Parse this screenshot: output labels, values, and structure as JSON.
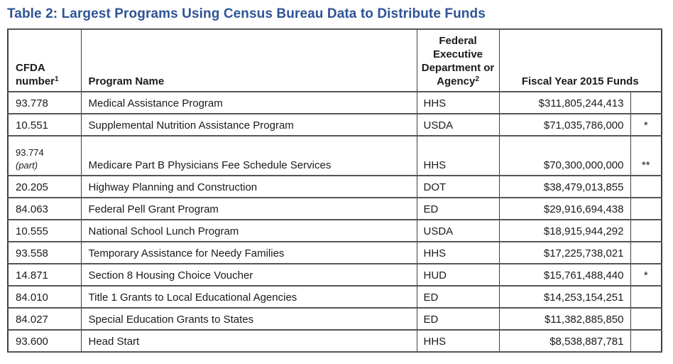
{
  "title": "Table 2: Largest Programs Using Census Bureau Data to Distribute Funds",
  "colors": {
    "title_text": "#2f5496",
    "table_border": "#3f3f3f",
    "body_text": "#1a1a1a",
    "background": "#ffffff"
  },
  "table": {
    "headers": {
      "cfda": {
        "line1": "CFDA",
        "line2": "number",
        "sup": "1"
      },
      "program": "Program Name",
      "agency": {
        "text": "Federal Executive Department or Agency",
        "sup": "2"
      },
      "funds": "Fiscal Year 2015 Funds"
    },
    "rows": [
      {
        "cfda": "93.778",
        "program": "Medical Assistance Program",
        "agency": "HHS",
        "funds": "$311,805,244,413",
        "note": ""
      },
      {
        "cfda": "10.551",
        "program": "Supplemental Nutrition Assistance Program",
        "agency": "USDA",
        "funds": "$71,035,786,000",
        "note": "*"
      },
      {
        "cfda": "93.774",
        "cfda_line2": "(part)",
        "program": "Medicare Part B Physicians Fee Schedule Services",
        "agency": "HHS",
        "funds": "$70,300,000,000",
        "note": "**"
      },
      {
        "cfda": "20.205",
        "program": "Highway Planning and Construction",
        "agency": "DOT",
        "funds": "$38,479,013,855",
        "note": ""
      },
      {
        "cfda": "84.063",
        "program": "Federal Pell Grant Program",
        "agency": "ED",
        "funds": "$29,916,694,438",
        "note": ""
      },
      {
        "cfda": "10.555",
        "program": "National School Lunch Program",
        "agency": "USDA",
        "funds": "$18,915,944,292",
        "note": ""
      },
      {
        "cfda": "93.558",
        "program": "Temporary Assistance for Needy Families",
        "agency": "HHS",
        "funds": "$17,225,738,021",
        "note": ""
      },
      {
        "cfda": "14.871",
        "program": "Section 8 Housing Choice Voucher",
        "agency": "HUD",
        "funds": "$15,761,488,440",
        "note": "*"
      },
      {
        "cfda": "84.010",
        "program": "Title 1 Grants to Local Educational Agencies",
        "agency": "ED",
        "funds": "$14,253,154,251",
        "note": ""
      },
      {
        "cfda": "84.027",
        "program": "Special Education Grants to States",
        "agency": "ED",
        "funds": "$11,382,885,850",
        "note": ""
      },
      {
        "cfda": "93.600",
        "program": "Head Start",
        "agency": "HHS",
        "funds": "$8,538,887,781",
        "note": ""
      }
    ]
  }
}
